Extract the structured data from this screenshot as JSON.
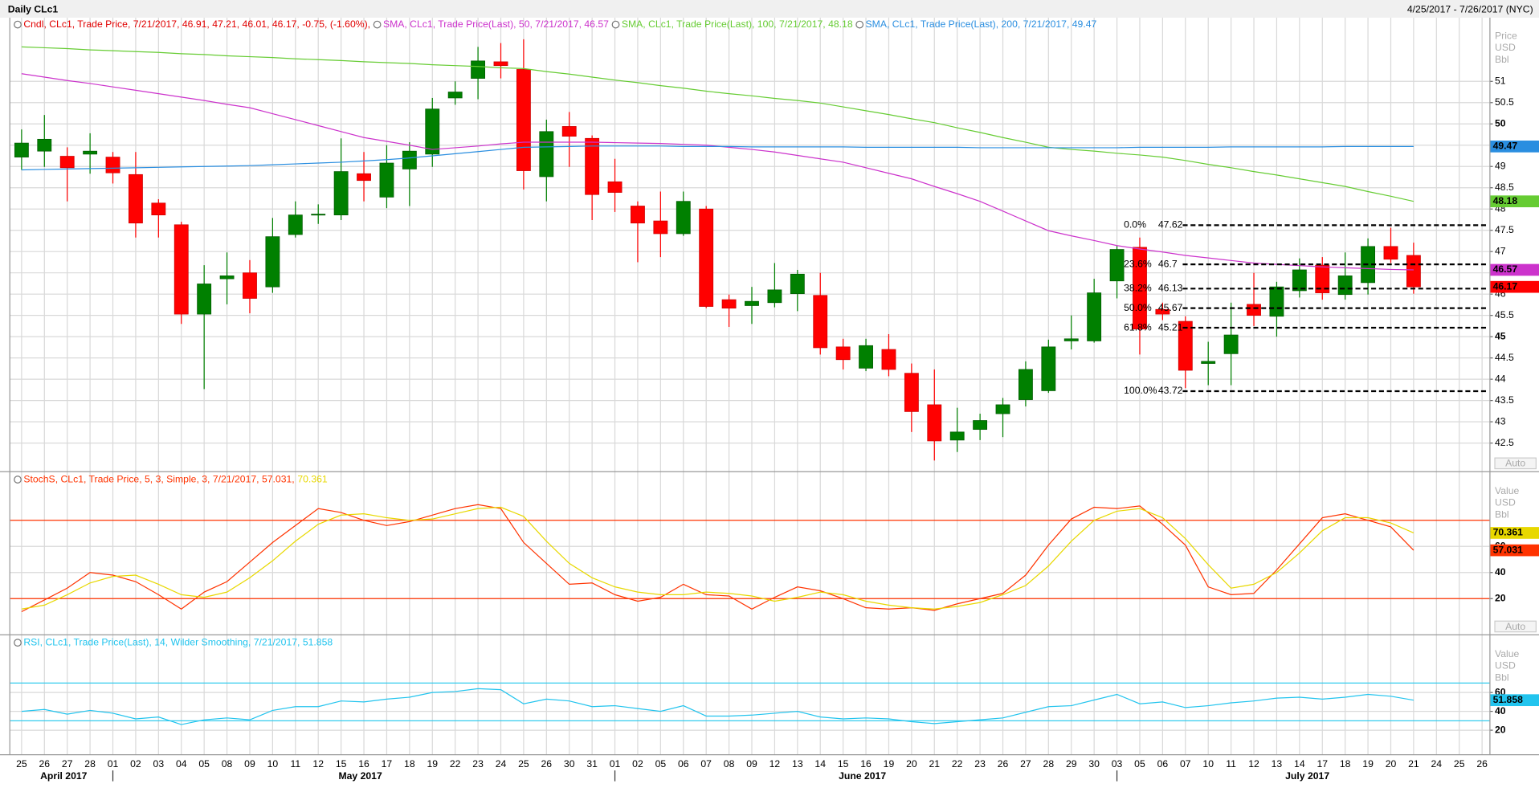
{
  "header": {
    "title": "Daily CLc1",
    "range": "4/25/2017 - 7/26/2017 (NYC)"
  },
  "x_axis": {
    "months": [
      {
        "label": "April 2017",
        "days": [
          "25",
          "26",
          "27",
          "28"
        ]
      },
      {
        "label": "May 2017",
        "days": [
          "01",
          "02",
          "03",
          "04",
          "05",
          "08",
          "09",
          "10",
          "11",
          "12",
          "15",
          "16",
          "17",
          "18",
          "19",
          "22",
          "23",
          "24",
          "25",
          "26",
          "30",
          "31"
        ]
      },
      {
        "label": "June 2017",
        "days": [
          "01",
          "02",
          "05",
          "06",
          "07",
          "08",
          "09",
          "12",
          "13",
          "14",
          "15",
          "16",
          "19",
          "20",
          "21",
          "22",
          "23",
          "26",
          "27",
          "28",
          "29",
          "30"
        ]
      },
      {
        "label": "July 2017",
        "days": [
          "03",
          "05",
          "06",
          "07",
          "10",
          "11",
          "12",
          "13",
          "14",
          "17",
          "18",
          "19",
          "20",
          "21",
          "24",
          "25",
          "26"
        ]
      }
    ]
  },
  "chart_data": [
    {
      "type": "candlestick",
      "name": "Cndl, CLc1, Trade Price, 7/21/2017, 46.91, 47.21, 46.01, 46.17, -0.75, (-1.60%),",
      "legend_color": "#e00000",
      "axis_title": [
        "Price",
        "USD",
        "Bbl"
      ],
      "button": "Auto",
      "ylim": [
        41.85,
        52.45
      ],
      "yticks": [
        42.5,
        43,
        43.5,
        44,
        44.5,
        45,
        45.5,
        46,
        46.5,
        47,
        47.5,
        48,
        48.5,
        49,
        49.5,
        50,
        50.5,
        51
      ],
      "grid": true,
      "up_color": "#008000",
      "down_color": "#ff0000",
      "open": [
        49.22,
        49.36,
        49.24,
        49.29,
        49.22,
        48.81,
        48.14,
        47.63,
        45.53,
        46.36,
        46.5,
        46.17,
        47.4,
        47.86,
        47.86,
        48.83,
        48.28,
        48.94,
        49.29,
        50.61,
        51.07,
        51.46,
        51.28,
        48.76,
        49.94,
        49.66,
        48.64,
        48.07,
        47.72,
        47.42,
        48.0,
        45.87,
        45.73,
        45.8,
        46.01,
        45.97,
        44.76,
        44.26,
        44.7,
        44.14,
        43.4,
        42.57,
        42.82,
        43.19,
        43.52,
        43.73,
        44.9,
        44.9,
        46.31,
        47.1,
        45.64,
        45.36,
        44.37,
        44.6,
        45.76,
        45.48,
        46.08,
        46.68,
        45.99,
        46.27,
        47.12,
        46.91,
        null,
        null,
        null
      ],
      "high": [
        49.87,
        50.21,
        49.45,
        49.78,
        49.34,
        49.34,
        48.23,
        47.7,
        46.68,
        46.98,
        46.8,
        47.79,
        48.18,
        48.11,
        49.66,
        49.34,
        49.5,
        49.57,
        50.61,
        51.0,
        51.81,
        51.9,
        51.99,
        50.1,
        50.28,
        49.73,
        49.18,
        48.18,
        48.41,
        48.41,
        48.07,
        45.99,
        46.17,
        46.73,
        46.57,
        46.5,
        44.95,
        44.95,
        45.06,
        44.37,
        44.23,
        43.33,
        43.19,
        43.56,
        44.42,
        44.93,
        45.5,
        46.36,
        47.14,
        47.33,
        45.8,
        45.48,
        44.88,
        45.8,
        46.5,
        46.29,
        46.84,
        46.87,
        46.98,
        47.31,
        47.56,
        47.21,
        null,
        null,
        null
      ],
      "low": [
        48.92,
        48.99,
        48.18,
        48.83,
        48.6,
        47.33,
        47.33,
        45.3,
        43.77,
        45.76,
        45.55,
        46.03,
        47.33,
        47.65,
        47.74,
        48.18,
        48.02,
        48.07,
        48.99,
        50.45,
        50.58,
        51.07,
        48.46,
        48.18,
        48.99,
        47.74,
        47.93,
        46.75,
        46.87,
        47.37,
        45.67,
        45.23,
        45.3,
        45.69,
        45.6,
        44.58,
        44.23,
        44.19,
        44.07,
        42.76,
        42.09,
        42.29,
        42.57,
        42.64,
        43.36,
        43.68,
        44.7,
        44.86,
        45.9,
        44.58,
        45.39,
        43.79,
        43.86,
        43.86,
        45.25,
        45.0,
        45.92,
        45.87,
        45.87,
        45.99,
        46.73,
        46.01,
        null,
        null,
        null
      ],
      "close": [
        49.55,
        49.64,
        48.97,
        49.36,
        48.85,
        47.67,
        47.86,
        45.53,
        46.24,
        46.43,
        45.9,
        47.35,
        47.86,
        47.88,
        48.88,
        48.67,
        49.08,
        49.36,
        50.35,
        50.75,
        51.48,
        51.37,
        48.9,
        49.82,
        49.71,
        48.34,
        48.39,
        47.67,
        47.42,
        48.18,
        45.71,
        45.67,
        45.83,
        46.1,
        46.47,
        44.74,
        44.46,
        44.79,
        44.23,
        43.24,
        42.55,
        42.76,
        43.03,
        43.4,
        44.23,
        44.76,
        44.95,
        46.03,
        47.05,
        45.18,
        45.53,
        44.21,
        44.42,
        45.04,
        45.5,
        46.17,
        46.57,
        46.03,
        46.43,
        47.12,
        46.82,
        46.17,
        null,
        null,
        null
      ],
      "series": [
        {
          "name": "SMA, CLc1, Trade Price(Last), 50, 7/21/2017, 46.57",
          "color": "#cc33cc",
          "values": [
            51.18,
            51.1,
            51.02,
            50.95,
            50.87,
            50.79,
            50.71,
            50.63,
            50.55,
            50.46,
            50.38,
            50.24,
            50.1,
            49.96,
            49.82,
            49.68,
            49.59,
            49.5,
            49.4,
            49.44,
            49.48,
            49.53,
            49.57,
            49.57,
            49.57,
            49.57,
            49.56,
            49.55,
            49.54,
            49.52,
            49.5,
            49.45,
            49.4,
            49.34,
            49.26,
            49.18,
            49.1,
            48.97,
            48.84,
            48.71,
            48.53,
            48.36,
            48.18,
            47.95,
            47.72,
            47.49,
            47.37,
            47.26,
            47.14,
            47.06,
            46.99,
            46.91,
            46.85,
            46.79,
            46.73,
            46.7,
            46.67,
            46.64,
            46.62,
            46.6,
            46.58,
            46.57,
            null,
            null,
            null
          ]
        },
        {
          "name": "SMA, CLc1, Trade Price(Last), 100, 7/21/2017, 48.18",
          "color": "#66cc33",
          "values": [
            51.81,
            51.79,
            51.77,
            51.74,
            51.72,
            51.7,
            51.68,
            51.65,
            51.63,
            51.6,
            51.58,
            51.56,
            51.53,
            51.51,
            51.49,
            51.46,
            51.44,
            51.42,
            51.39,
            51.37,
            51.35,
            51.32,
            51.3,
            51.23,
            51.17,
            51.1,
            51.03,
            50.97,
            50.9,
            50.84,
            50.77,
            50.71,
            50.66,
            50.6,
            50.55,
            50.49,
            50.4,
            50.31,
            50.22,
            50.12,
            50.03,
            49.91,
            49.8,
            49.68,
            49.57,
            49.45,
            49.4,
            49.36,
            49.31,
            49.27,
            49.22,
            49.14,
            49.05,
            48.97,
            48.88,
            48.8,
            48.71,
            48.62,
            48.53,
            48.41,
            48.3,
            48.18,
            null,
            null,
            null
          ]
        },
        {
          "name": "SMA, CLc1, Trade Price(Last), 200, 7/21/2017, 49.47",
          "color": "#2a8ee0",
          "values": [
            48.92,
            48.93,
            48.94,
            48.95,
            48.96,
            48.97,
            48.98,
            48.99,
            49.0,
            49.01,
            49.02,
            49.04,
            49.06,
            49.08,
            49.1,
            49.13,
            49.16,
            49.2,
            49.25,
            49.3,
            49.35,
            49.4,
            49.45,
            49.46,
            49.47,
            49.48,
            49.48,
            49.48,
            49.48,
            49.47,
            49.47,
            49.47,
            49.46,
            49.46,
            49.46,
            49.46,
            49.46,
            49.45,
            49.45,
            49.45,
            49.45,
            49.45,
            49.44,
            49.44,
            49.44,
            49.44,
            49.44,
            49.44,
            49.44,
            49.45,
            49.45,
            49.45,
            49.45,
            49.46,
            49.46,
            49.46,
            49.46,
            49.46,
            49.47,
            49.47,
            49.47,
            49.47,
            null,
            null,
            null
          ]
        }
      ],
      "fibonacci": [
        {
          "label": "0.0%",
          "value": 47.62
        },
        {
          "label": "23.6%",
          "value": 46.7
        },
        {
          "label": "38.2%",
          "value": 46.13
        },
        {
          "label": "50.0%",
          "value": 45.67
        },
        {
          "label": "61.8%",
          "value": 45.21
        },
        {
          "label": "100.0%",
          "value": 43.72
        }
      ]
    },
    {
      "type": "line",
      "axis_title": [
        "Value",
        "USD",
        "Bbl"
      ],
      "button": "Auto",
      "ylim": [
        -7,
        115
      ],
      "yticks": [
        20,
        40,
        60
      ],
      "grid": true,
      "hlines": [
        {
          "value": 80,
          "color": "#ff3300"
        },
        {
          "value": 20,
          "color": "#ff3300"
        }
      ],
      "series": [
        {
          "name": "StochS, CLc1, Trade Price, 5, 3, Simple, 3, 7/21/2017, 57.031,",
          "color": "#ff3300",
          "values": [
            10,
            19,
            28,
            40,
            38,
            33,
            23,
            12,
            25,
            33,
            48,
            63,
            76,
            89,
            86,
            80,
            76,
            79,
            84,
            89,
            92,
            89,
            63,
            47,
            31,
            32,
            23,
            18,
            21,
            31,
            23,
            22,
            12,
            21,
            29,
            26,
            20,
            13,
            12,
            13,
            11,
            16,
            20,
            24,
            38,
            61,
            81,
            90,
            89,
            91,
            77,
            61,
            29,
            23,
            24,
            42,
            62,
            82,
            85,
            80,
            75,
            57.031,
            null,
            null,
            null
          ]
        },
        {
          "name": "70.361",
          "color": "#e8d800",
          "values": [
            12,
            15,
            23,
            32,
            37,
            38,
            31,
            23,
            21,
            25,
            36,
            49,
            64,
            77,
            84,
            85,
            82,
            80,
            81,
            85,
            89,
            90,
            83,
            64,
            47,
            36,
            29,
            25,
            23,
            23,
            25,
            24,
            22,
            18,
            21,
            25,
            23,
            18,
            15,
            13,
            12,
            14,
            17,
            23,
            30,
            45,
            64,
            80,
            87,
            89,
            82,
            66,
            46,
            28,
            31,
            40,
            55,
            72,
            82,
            82,
            78,
            70.361,
            null,
            null,
            null
          ]
        }
      ]
    },
    {
      "type": "line",
      "axis_title": [
        "Value",
        "USD",
        "Bbl"
      ],
      "ylim": [
        -6,
        118
      ],
      "yticks": [
        20,
        40,
        60
      ],
      "grid": true,
      "hlines": [
        {
          "value": 70,
          "color": "#33ccee"
        },
        {
          "value": 30,
          "color": "#33ccee"
        }
      ],
      "series": [
        {
          "name": "RSI, CLc1, Trade Price(Last), 14, Wilder Smoothing, 7/21/2017, 51.858",
          "color": "#22c4ee",
          "values": [
            40,
            42,
            37,
            41,
            38,
            32,
            34,
            26,
            31,
            33,
            31,
            41,
            45,
            45,
            51,
            50,
            53,
            55,
            60,
            61,
            64,
            63,
            48,
            53,
            51,
            45,
            46,
            43,
            40,
            46,
            35,
            35,
            36,
            38,
            40,
            34,
            32,
            33,
            32,
            29,
            27,
            29,
            31,
            33,
            39,
            45,
            46,
            52,
            58,
            48,
            50,
            44,
            46,
            49,
            51,
            54,
            55,
            53,
            55,
            58,
            56,
            51.858,
            null,
            null,
            null
          ]
        }
      ]
    }
  ]
}
